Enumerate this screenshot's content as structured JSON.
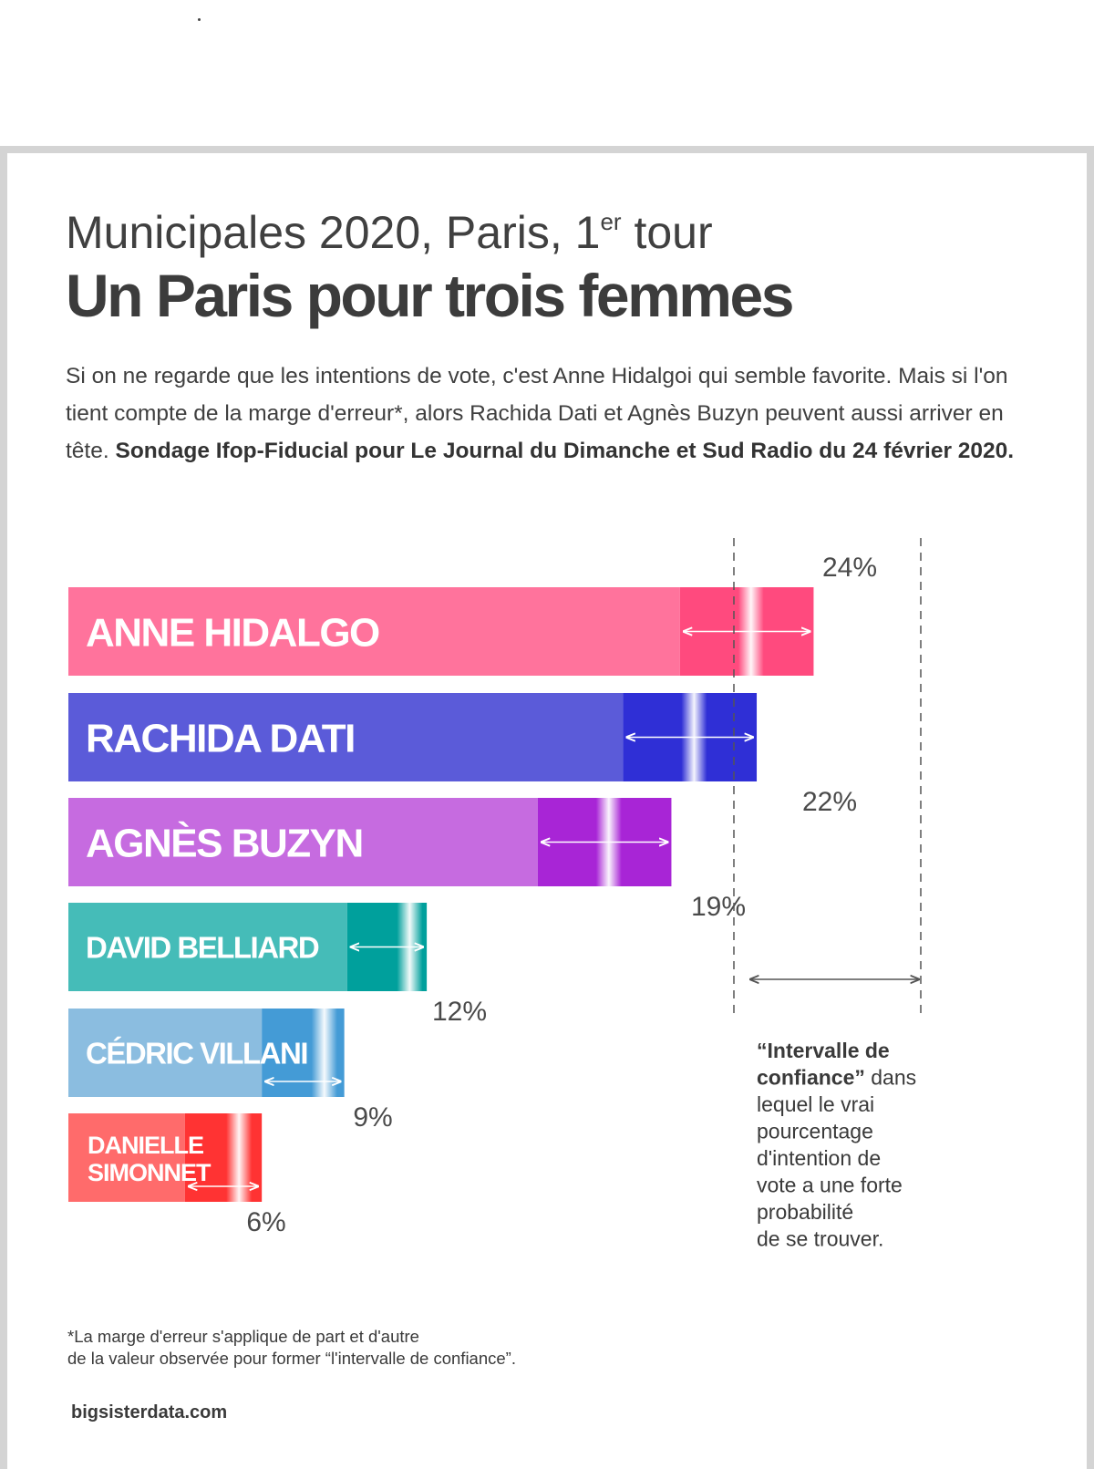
{
  "header": {
    "kicker": "Municipales 2020, Paris, 1",
    "kicker_sup": "er",
    "kicker_tail": " tour",
    "title": "Un Paris pour trois femmes"
  },
  "intro": {
    "text": "Si on ne regarde que les intentions de vote, c'est Anne Hidalgoi qui semble favorite. Mais si l'on tient compte de la marge d'erreur*, alors Rachida Dati et Agnès Buzyn peuvent aussi arriver en tête. ",
    "source_bold": "Sondage Ifop-Fiducial pour Le Journal du Dimanche et Sud Radio du 24 février 2020."
  },
  "chart_data": {
    "type": "bar",
    "orientation": "horizontal",
    "categories": [
      "ANNE HIDALGO",
      "RACHIDA DATI",
      "AGNÈS BUZYN",
      "DAVID BELLIARD",
      "CÉDRIC VILLANI",
      "DANIELLE SIMONNET"
    ],
    "values": [
      24,
      22,
      19,
      12,
      9,
      6
    ],
    "value_labels": [
      "24%",
      "22%",
      "19%",
      "12%",
      "9%",
      "6%"
    ],
    "confidence_interval": [
      [
        21.5,
        26.2
      ],
      [
        19.5,
        24.2
      ],
      [
        16.5,
        21.2
      ],
      [
        9.8,
        12.6
      ],
      [
        6.8,
        9.7
      ],
      [
        4.1,
        6.8
      ]
    ],
    "colors": {
      "base": [
        "#ff739c",
        "#5b5bd9",
        "#c66be0",
        "#45bcb8",
        "#8bbde0",
        "#ff6b6b"
      ],
      "interval": [
        "#ff4a7e",
        "#2f2fd6",
        "#a825d6",
        "#00a09c",
        "#449bd6",
        "#ff3333"
      ]
    },
    "legend_note": {
      "bold": "“Intervalle de confiance”",
      "text": " dans lequel le vrai pourcentage d'intention de vote a une forte probabilité de se trouver."
    }
  },
  "footer": {
    "footnote_line1": "*La marge d'erreur s'applique de part et d'autre",
    "footnote_line2": "de la valeur observée pour former “l'intervalle de confiance”.",
    "source": "bigsisterdata.com"
  }
}
